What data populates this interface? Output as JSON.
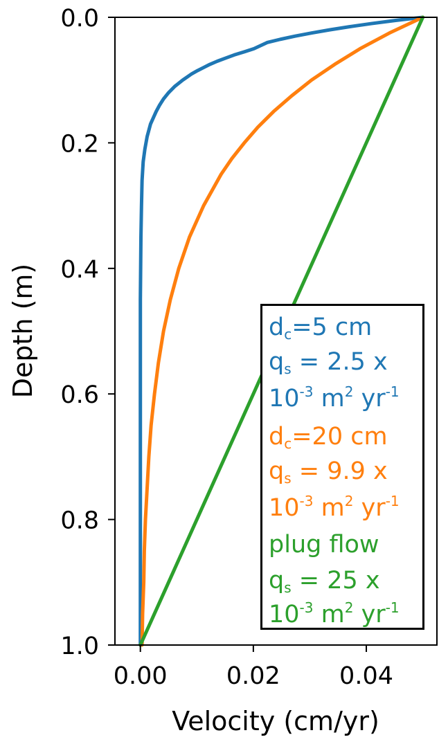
{
  "chart_data": {
    "type": "line",
    "xlabel": "Velocity (cm/yr)",
    "ylabel": "Depth (m)",
    "xlim": [
      -0.0045,
      0.0525
    ],
    "ylim": [
      1.0,
      0.0
    ],
    "y_inverted": true,
    "xticks": [
      "0.00",
      "0.02",
      "0.04"
    ],
    "xtick_values": [
      0.0,
      0.02,
      0.04
    ],
    "yticks": [
      "0.0",
      "0.2",
      "0.4",
      "0.6",
      "0.8",
      "1.0"
    ],
    "ytick_values": [
      0.0,
      0.2,
      0.4,
      0.6,
      0.8,
      1.0
    ],
    "grid": false,
    "legend_position": "bottom-right",
    "colors": {
      "blue": "#1f77b4",
      "orange": "#ff7f0e",
      "green": "#2ca02c"
    },
    "series": [
      {
        "color": "#1f77b4",
        "points": [
          [
            0.05,
            0.0
          ],
          [
            0.0452,
            0.005
          ],
          [
            0.0409,
            0.01
          ],
          [
            0.037,
            0.015
          ],
          [
            0.0335,
            0.02
          ],
          [
            0.0303,
            0.025
          ],
          [
            0.0274,
            0.03
          ],
          [
            0.0248,
            0.035
          ],
          [
            0.0225,
            0.04
          ],
          [
            0.0201,
            0.05
          ],
          [
            0.0184,
            0.055
          ],
          [
            0.0166,
            0.06
          ],
          [
            0.0151,
            0.065
          ],
          [
            0.0136,
            0.07
          ],
          [
            0.0123,
            0.075
          ],
          [
            0.0112,
            0.08
          ],
          [
            0.0101,
            0.085
          ],
          [
            0.0091,
            0.09
          ],
          [
            0.0083,
            0.095
          ],
          [
            0.0075,
            0.1
          ],
          [
            0.0061,
            0.11
          ],
          [
            0.005,
            0.12
          ],
          [
            0.0041,
            0.13
          ],
          [
            0.0034,
            0.14
          ],
          [
            0.0028,
            0.15
          ],
          [
            0.0023,
            0.16
          ],
          [
            0.0018,
            0.17
          ],
          [
            0.0012,
            0.19
          ],
          [
            0.0008,
            0.21
          ],
          [
            0.0005,
            0.23
          ],
          [
            0.0003,
            0.26
          ],
          [
            0.0002,
            0.3
          ],
          [
            0.0001,
            0.35
          ],
          [
            0.0,
            0.45
          ],
          [
            0.0,
            0.6
          ],
          [
            0.0,
            0.8
          ],
          [
            0.0,
            1.0
          ]
        ]
      },
      {
        "color": "#ff7f0e",
        "points": [
          [
            0.05,
            0.0
          ],
          [
            0.0441,
            0.025
          ],
          [
            0.0389,
            0.05
          ],
          [
            0.0344,
            0.075
          ],
          [
            0.0303,
            0.1
          ],
          [
            0.0268,
            0.125
          ],
          [
            0.0236,
            0.15
          ],
          [
            0.0208,
            0.175
          ],
          [
            0.0184,
            0.2
          ],
          [
            0.0162,
            0.225
          ],
          [
            0.0143,
            0.25
          ],
          [
            0.0112,
            0.3
          ],
          [
            0.0087,
            0.35
          ],
          [
            0.0068,
            0.4
          ],
          [
            0.0053,
            0.45
          ],
          [
            0.0041,
            0.5
          ],
          [
            0.0032,
            0.55
          ],
          [
            0.0025,
            0.6
          ],
          [
            0.0019,
            0.65
          ],
          [
            0.0015,
            0.7
          ],
          [
            0.0012,
            0.75
          ],
          [
            0.0009,
            0.8
          ],
          [
            0.0007,
            0.85
          ],
          [
            0.0006,
            0.9
          ],
          [
            0.0004,
            0.95
          ],
          [
            0.0003,
            1.0
          ]
        ]
      },
      {
        "color": "#2ca02c",
        "points": [
          [
            0.05,
            0.0
          ],
          [
            0.0,
            1.0
          ]
        ]
      }
    ]
  },
  "legend": {
    "blue": {
      "line1": {
        "a": "d",
        "sub": "c",
        "b": "=5 cm"
      },
      "line2": {
        "a": "q",
        "sub": "s",
        "b": " = 2.5 x"
      },
      "line3": {
        "a": "10",
        "sup1": "-3",
        "b": " m",
        "sup2": "2",
        "c": " yr",
        "sup3": "-1"
      }
    },
    "orange": {
      "line1": {
        "a": "d",
        "sub": "c",
        "b": "=20 cm"
      },
      "line2": {
        "a": "q",
        "sub": "s",
        "b": " = 9.9 x"
      },
      "line3": {
        "a": "10",
        "sup1": "-3",
        "b": " m",
        "sup2": "2",
        "c": " yr",
        "sup3": "-1"
      }
    },
    "green": {
      "line1": {
        "a": "plug flow"
      },
      "line2": {
        "a": "q",
        "sub": "s",
        "b": " = 25 x"
      },
      "line3": {
        "a": "10",
        "sup1": "-3",
        "b": " m",
        "sup2": "2",
        "c": " yr",
        "sup3": "-1"
      }
    }
  }
}
